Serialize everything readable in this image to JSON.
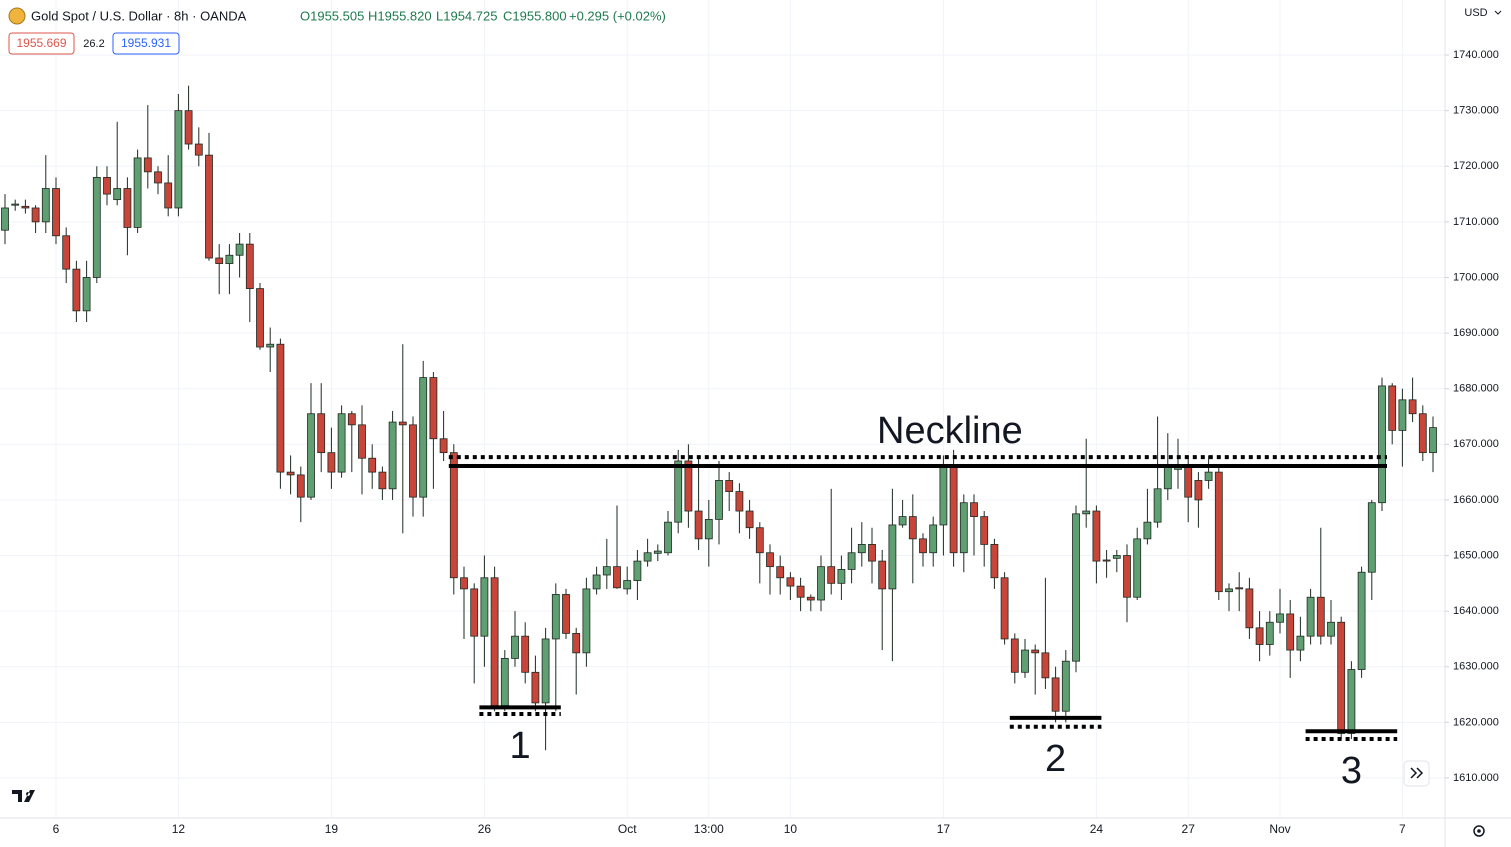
{
  "chart_data": {
    "type": "candlestick",
    "title": "Gold Spot / U.S. Dollar · 8h · OANDA",
    "ohlc_header": [
      "O1955.505",
      "H1955.820",
      "L1954.725",
      "C1955.800",
      "+0.295 (+0.02%)"
    ],
    "badges": [
      "1955.669",
      "26.2",
      "1955.931"
    ],
    "currency": "USD",
    "up_color": "#5f9f72",
    "down_color": "#c8453a",
    "grid": true,
    "ylim": [
      1602.8,
      1749.9
    ],
    "yticks": [
      {
        "value": 1610,
        "label": "1610.000"
      },
      {
        "value": 1620,
        "label": "1620.000"
      },
      {
        "value": 1630,
        "label": "1630.000"
      },
      {
        "value": 1640,
        "label": "1640.000"
      },
      {
        "value": 1650,
        "label": "1650.000"
      },
      {
        "value": 1660,
        "label": "1660.000"
      },
      {
        "value": 1670,
        "label": "1670.000"
      },
      {
        "value": 1680,
        "label": "1680.000"
      },
      {
        "value": 1690,
        "label": "1690.000"
      },
      {
        "value": 1700,
        "label": "1700.000"
      },
      {
        "value": 1710,
        "label": "1710.000"
      },
      {
        "value": 1720,
        "label": "1720.000"
      },
      {
        "value": 1730,
        "label": "1730.000"
      },
      {
        "value": 1740,
        "label": "1740.000"
      }
    ],
    "categories": [
      null,
      null,
      null,
      null,
      null,
      "6",
      null,
      null,
      null,
      null,
      null,
      null,
      null,
      null,
      null,
      null,
      null,
      "12",
      null,
      null,
      null,
      null,
      null,
      null,
      null,
      null,
      null,
      null,
      null,
      null,
      null,
      null,
      "19",
      null,
      null,
      null,
      null,
      null,
      null,
      null,
      null,
      null,
      null,
      null,
      null,
      null,
      null,
      "26",
      null,
      null,
      null,
      null,
      null,
      null,
      null,
      null,
      null,
      null,
      null,
      null,
      null,
      "Oct",
      null,
      null,
      null,
      null,
      null,
      null,
      null,
      "13:00",
      null,
      null,
      null,
      null,
      null,
      null,
      null,
      "10",
      null,
      null,
      null,
      null,
      null,
      null,
      null,
      null,
      null,
      null,
      null,
      null,
      null,
      null,
      "17",
      null,
      null,
      null,
      null,
      null,
      null,
      null,
      null,
      null,
      null,
      null,
      null,
      null,
      null,
      "24",
      null,
      null,
      null,
      null,
      null,
      null,
      null,
      null,
      "27",
      null,
      null,
      null,
      null,
      null,
      null,
      null,
      null,
      "Nov",
      null,
      null,
      null,
      null,
      null,
      null,
      null,
      null,
      null,
      null,
      null,
      "7",
      null,
      null,
      null
    ],
    "open": [
      1708.5,
      1713,
      1712.8,
      1712.5,
      1710,
      1716,
      1707.5,
      1701.5,
      1694,
      1700,
      1718,
      1714,
      1716,
      1709,
      1721.5,
      1719,
      1717,
      1712.5,
      1730,
      1724,
      1722,
      1703.5,
      1702.5,
      1704,
      1706,
      1698,
      1687.5,
      1688,
      1665,
      1664.5,
      1660.5,
      1675.5,
      1668.5,
      1665,
      1675.5,
      1673.5,
      1667.5,
      1665,
      1662,
      1674,
      1673.5,
      1660.5,
      1682,
      1671,
      1668.5,
      1646,
      1644,
      1635.5,
      1646,
      1623,
      1631.5,
      1635.5,
      1629,
      1623.5,
      1635,
      1643,
      1636,
      1632.5,
      1644,
      1646.5,
      1648,
      1644,
      1645.5,
      1649,
      1650.4,
      1650.5,
      1656,
      1667,
      1658,
      1653,
      1656.5,
      1663.5,
      1661.5,
      1658,
      1655,
      1650.5,
      1648,
      1646,
      1644.5,
      1642.5,
      1642,
      1648,
      1645,
      1647.5,
      1650.5,
      1652,
      1649,
      1644,
      1655.5,
      1657,
      1653,
      1650.5,
      1655.5,
      1666,
      1650.5,
      1659.5,
      1657,
      1652,
      1646,
      1635,
      1629,
      1633,
      1632.5,
      1628,
      1622,
      1631,
      1657.5,
      1658,
      1649.2,
      1649.5,
      1650,
      1642.5,
      1653,
      1656,
      1662,
      1665.5,
      1666,
      1663.5,
      1663.5,
      1665,
      1643.5,
      1644.2,
      1644,
      1637,
      1634,
      1638,
      1639.5,
      1633,
      1635.5,
      1642.5,
      1635.5,
      1638,
      1618,
      1629.5,
      1647,
      1659.5,
      1680.5,
      1672.5,
      1678,
      1675.5,
      1668.5
    ],
    "high": [
      1715,
      1714,
      1714,
      1713,
      1722,
      1718,
      1709,
      1703,
      1703,
      1720,
      1720,
      1728,
      1718,
      1723,
      1731,
      1720,
      1722,
      1733,
      1734.5,
      1727,
      1726,
      1706,
      1706,
      1708,
      1708,
      1699,
      1691,
      1689,
      1668,
      1666,
      1681,
      1681,
      1673,
      1677,
      1676,
      1677,
      1670,
      1666,
      1676,
      1688,
      1675,
      1685,
      1683,
      1676,
      1670,
      1648,
      1645,
      1650,
      1648,
      1633,
      1640,
      1638,
      1632,
      1637,
      1645,
      1644,
      1637,
      1646,
      1648,
      1653,
      1659,
      1648,
      1651,
      1653,
      1652,
      1658,
      1669,
      1670,
      1668,
      1660,
      1667,
      1665,
      1663,
      1660,
      1656,
      1652,
      1650,
      1647,
      1646,
      1643,
      1650,
      1662,
      1650,
      1655,
      1656,
      1655,
      1651,
      1662,
      1660,
      1661,
      1654,
      1657,
      1668,
      1669,
      1661,
      1661,
      1658,
      1653,
      1647,
      1636,
      1635,
      1634,
      1646,
      1630,
      1633,
      1659,
      1671,
      1659,
      1651,
      1651,
      1652,
      1655,
      1662,
      1675,
      1672,
      1671,
      1668,
      1665,
      1668,
      1666,
      1645,
      1647,
      1646,
      1640,
      1640,
      1644,
      1642,
      1639,
      1644,
      1655,
      1642,
      1639,
      1631,
      1648,
      1660,
      1682,
      1681,
      1680,
      1682,
      1677,
      1675
    ],
    "low": [
      1706,
      1712,
      1711.5,
      1708,
      1708,
      1706,
      1699,
      1692,
      1692,
      1699,
      1713,
      1713,
      1704,
      1708,
      1716,
      1715,
      1711,
      1711,
      1723,
      1720,
      1703,
      1697,
      1697,
      1700,
      1692,
      1687,
      1683,
      1662,
      1661,
      1656,
      1660,
      1665,
      1662,
      1664,
      1665,
      1661,
      1662,
      1660,
      1660,
      1654,
      1657,
      1657,
      1662,
      1667,
      1643,
      1635,
      1627,
      1630,
      1622,
      1622,
      1630,
      1627,
      1622,
      1615,
      1622,
      1635,
      1625,
      1630,
      1643,
      1644,
      1644,
      1643,
      1642,
      1648,
      1649,
      1650,
      1654,
      1655,
      1651,
      1648,
      1652,
      1658,
      1654,
      1653,
      1645,
      1643,
      1643,
      1642,
      1640,
      1640,
      1640,
      1643,
      1642,
      1645,
      1648,
      1645,
      1633,
      1631,
      1655,
      1645,
      1648,
      1648,
      1650,
      1648,
      1647,
      1650,
      1648,
      1644,
      1634,
      1627,
      1628,
      1625,
      1626,
      1620,
      1620,
      1629,
      1655,
      1645,
      1646,
      1647,
      1638,
      1642,
      1652,
      1655,
      1660,
      1662,
      1656,
      1655,
      1662,
      1642,
      1640,
      1640,
      1635,
      1631,
      1632,
      1636,
      1628,
      1631,
      1634,
      1634,
      1634,
      1617,
      1617,
      1628,
      1642,
      1658,
      1670,
      1666,
      1674,
      1667,
      1665
    ],
    "close": [
      1712.5,
      1713.2,
      1712.5,
      1710,
      1716,
      1707.5,
      1701.5,
      1694,
      1700,
      1718,
      1715,
      1716,
      1709,
      1721.5,
      1719,
      1717,
      1712.5,
      1730,
      1724,
      1722,
      1703.5,
      1702.5,
      1704,
      1706,
      1698,
      1687.5,
      1688,
      1665,
      1664.5,
      1660.5,
      1675.5,
      1668.5,
      1665,
      1675.5,
      1673.5,
      1667.5,
      1665,
      1662,
      1674,
      1673.5,
      1660.5,
      1682,
      1671,
      1668.5,
      1646,
      1644,
      1635.5,
      1646,
      1623,
      1631.5,
      1635.5,
      1629,
      1623.5,
      1635,
      1643,
      1636,
      1632.5,
      1644,
      1646.5,
      1648,
      1644.2,
      1645.5,
      1649,
      1650.5,
      1650.8,
      1656,
      1667,
      1658,
      1653,
      1656.5,
      1663.5,
      1661.5,
      1658,
      1655,
      1650.5,
      1648,
      1646,
      1644.5,
      1642.5,
      1642,
      1648,
      1645,
      1647.5,
      1650.5,
      1652,
      1649,
      1644,
      1655.5,
      1657,
      1653,
      1650.5,
      1655.5,
      1666,
      1650.5,
      1659.5,
      1657,
      1652,
      1646,
      1635,
      1629,
      1633,
      1632.5,
      1628,
      1622,
      1631,
      1657.5,
      1658,
      1649,
      1649,
      1650,
      1642.5,
      1653,
      1656,
      1662,
      1666,
      1666,
      1660.5,
      1660,
      1665,
      1643.5,
      1644,
      1644,
      1637,
      1634,
      1638,
      1639.5,
      1633,
      1635.5,
      1642.5,
      1635.5,
      1638,
      1618,
      1629.5,
      1647,
      1659.5,
      1680.5,
      1672.5,
      1678,
      1675.5,
      1668.5,
      1673
    ],
    "annotations": [
      {
        "label": "Neckline",
        "value": 1666.1,
        "dotted_value": 1667.7,
        "from": 44,
        "to": 135
      },
      {
        "label": "1",
        "value": 1622.7,
        "dotted_value": 1621.5,
        "from": 47,
        "to": 54
      },
      {
        "label": "2",
        "value": 1620.8,
        "dotted_value": 1619.2,
        "from": 99,
        "to": 107
      },
      {
        "label": "3",
        "value": 1618.4,
        "dotted_value": 1617.0,
        "from": 128,
        "to": 136
      }
    ]
  }
}
